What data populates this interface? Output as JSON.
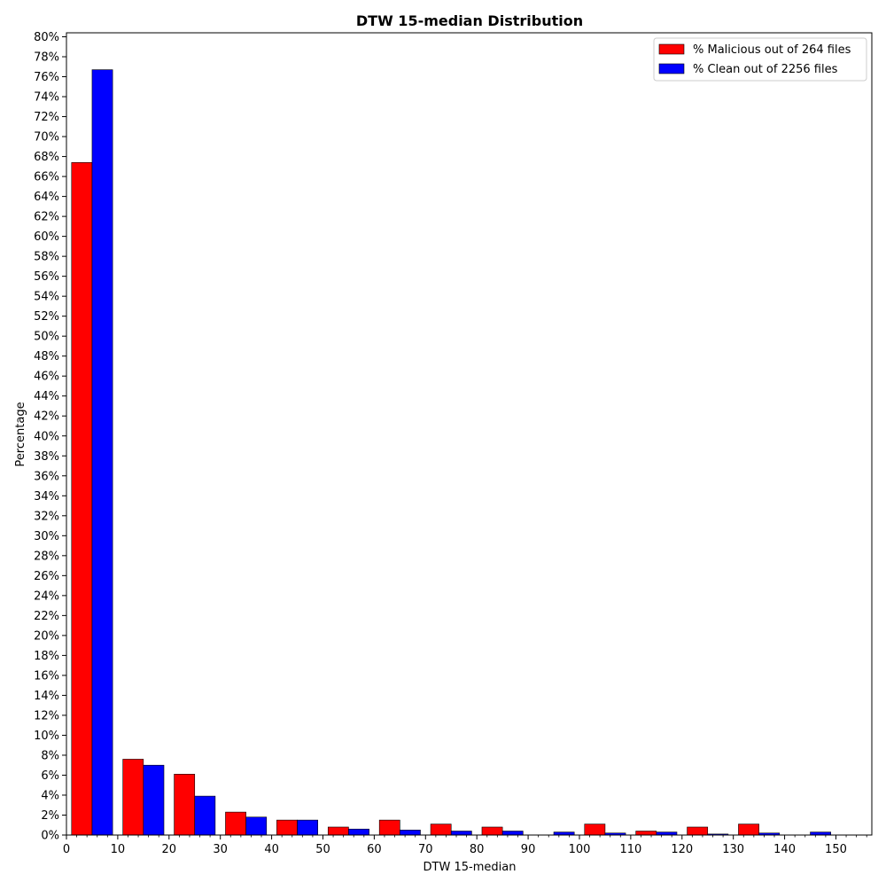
{
  "chart_data": {
    "type": "bar",
    "title": "DTW 15-median Distribution",
    "xlabel": "DTW 15-median",
    "ylabel": "Percentage",
    "xlim": [
      0,
      157
    ],
    "ylim": [
      0,
      80.4
    ],
    "bin_width": 10,
    "bin_starts": [
      0,
      10,
      20,
      30,
      40,
      50,
      60,
      70,
      80,
      90,
      100,
      110,
      120,
      130,
      140
    ],
    "x_ticks": [
      0,
      10,
      20,
      30,
      40,
      50,
      60,
      70,
      80,
      90,
      100,
      110,
      120,
      130,
      140,
      150
    ],
    "x_tick_labels": [
      "0",
      "10",
      "20",
      "30",
      "40",
      "50",
      "60",
      "70",
      "80",
      "90",
      "100",
      "110",
      "120",
      "130",
      "140",
      "150"
    ],
    "y_ticks": [
      0,
      2,
      4,
      6,
      8,
      10,
      12,
      14,
      16,
      18,
      20,
      22,
      24,
      26,
      28,
      30,
      32,
      34,
      36,
      38,
      40,
      42,
      44,
      46,
      48,
      50,
      52,
      54,
      56,
      58,
      60,
      62,
      64,
      66,
      68,
      70,
      72,
      74,
      76,
      78,
      80
    ],
    "y_tick_labels": [
      "0%",
      "2%",
      "4%",
      "6%",
      "8%",
      "10%",
      "12%",
      "14%",
      "16%",
      "18%",
      "20%",
      "22%",
      "24%",
      "26%",
      "28%",
      "30%",
      "32%",
      "34%",
      "36%",
      "38%",
      "40%",
      "42%",
      "44%",
      "46%",
      "48%",
      "50%",
      "52%",
      "54%",
      "56%",
      "58%",
      "60%",
      "62%",
      "64%",
      "66%",
      "68%",
      "70%",
      "72%",
      "74%",
      "76%",
      "78%",
      "80%"
    ],
    "series": [
      {
        "name": "% Malicious out of 264 files",
        "color": "#ff0000",
        "values": [
          67.4,
          7.6,
          6.1,
          2.3,
          1.5,
          0.8,
          1.5,
          1.1,
          0.8,
          0.0,
          1.1,
          0.4,
          0.8,
          1.1,
          0.0
        ]
      },
      {
        "name": "% Clean out of 2256 files",
        "color": "#0000ff",
        "values": [
          76.7,
          7.0,
          3.9,
          1.8,
          1.5,
          0.6,
          0.5,
          0.4,
          0.4,
          0.3,
          0.2,
          0.3,
          0.1,
          0.2,
          0.3
        ]
      }
    ],
    "legend_position": "top-right",
    "grid": false
  }
}
